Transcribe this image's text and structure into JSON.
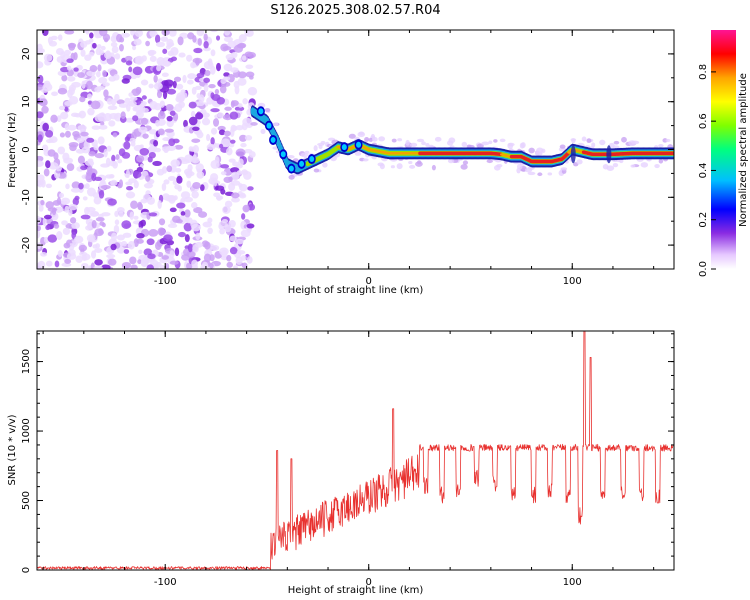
{
  "title": "S126.2025.308.02.57.R04",
  "chart_data": [
    {
      "type": "heatmap",
      "name": "spectrogram",
      "xlabel": "Height of straight line (km)",
      "ylabel": "Frequency (Hz)",
      "xlim": [
        -163,
        150
      ],
      "ylim": [
        -25,
        25
      ],
      "xticks": [
        -100,
        0,
        100
      ],
      "yticks": [
        -20,
        -10,
        0,
        10,
        20
      ],
      "colorbar": {
        "label": "Normalized spectral amplitude",
        "range": [
          0,
          0.97
        ],
        "ticks": [
          0.0,
          0.2,
          0.4,
          0.6,
          0.8
        ],
        "tick_labels": [
          "0.0",
          "0.2",
          "0.4",
          "0.6",
          "0.8"
        ],
        "colors": [
          "#ffffff",
          "#e6c8ff",
          "#8a2be2",
          "#0000ff",
          "#00bfff",
          "#00ff7f",
          "#7fff00",
          "#ffff00",
          "#ffa500",
          "#ff0000",
          "#ff1493"
        ]
      },
      "noise_region_x": [
        -163,
        -57
      ],
      "signal_track": {
        "x": [
          -57,
          -50,
          -45,
          -40,
          -35,
          -30,
          -25,
          -20,
          -15,
          -10,
          -5,
          0,
          10,
          20,
          30,
          40,
          50,
          60,
          65,
          70,
          75,
          80,
          85,
          90,
          95,
          100,
          110,
          120,
          130,
          140,
          150
        ],
        "freq": [
          8,
          6,
          2,
          -3,
          -4,
          -3,
          -2,
          -1,
          0.5,
          0,
          1,
          0,
          -0.8,
          -0.8,
          -0.8,
          -0.8,
          -0.8,
          -0.8,
          -1,
          -1.5,
          -1.5,
          -2.5,
          -2.5,
          -2.5,
          -2,
          0,
          -1,
          -1,
          -0.8,
          -0.8,
          -0.8
        ]
      }
    },
    {
      "type": "line",
      "name": "snr",
      "xlabel": "Height of straight line (km)",
      "ylabel": "SNR (10 * v/v)",
      "xlim": [
        -163,
        150
      ],
      "ylim": [
        0,
        1720
      ],
      "xticks": [
        -100,
        0,
        100
      ],
      "yticks": [
        0,
        500,
        1000,
        1500
      ],
      "color": "#e8312f",
      "series_summary": {
        "baseline_x": [
          -163,
          -48
        ],
        "baseline_level": 15,
        "ramp_x": [
          -48,
          25
        ],
        "ramp_peaks": [
          {
            "x": -45,
            "y": 860
          },
          {
            "x": -38,
            "y": 800
          },
          {
            "x": 12,
            "y": 1160
          }
        ],
        "plateau_x": [
          25,
          150
        ],
        "plateau_level": 880,
        "dips": [
          {
            "x": 27,
            "y": 550
          },
          {
            "x": 35,
            "y": 480
          },
          {
            "x": 43,
            "y": 520
          },
          {
            "x": 52,
            "y": 600
          },
          {
            "x": 61,
            "y": 560
          },
          {
            "x": 70,
            "y": 480
          },
          {
            "x": 80,
            "y": 480
          },
          {
            "x": 88,
            "y": 500
          },
          {
            "x": 97,
            "y": 480
          },
          {
            "x": 103,
            "y": 330
          },
          {
            "x": 114,
            "y": 480
          },
          {
            "x": 124,
            "y": 480
          },
          {
            "x": 133,
            "y": 480
          },
          {
            "x": 141,
            "y": 460
          }
        ],
        "spikes": [
          {
            "x": 106,
            "y": 1720
          },
          {
            "x": 109,
            "y": 1530
          }
        ]
      }
    }
  ]
}
